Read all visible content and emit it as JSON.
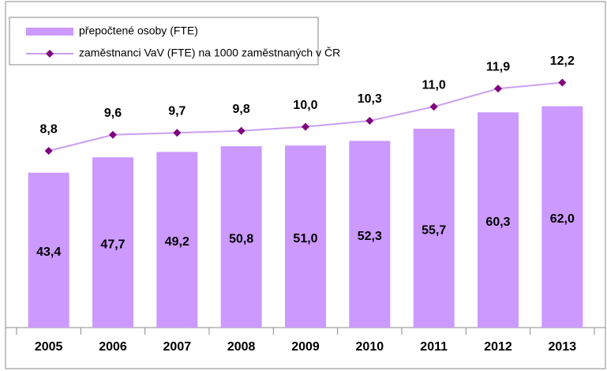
{
  "chart_data": {
    "type": "bar",
    "categories": [
      "2005",
      "2006",
      "2007",
      "2008",
      "2009",
      "2010",
      "2011",
      "2012",
      "2013"
    ],
    "series": [
      {
        "name": "přepočtené osoby (FTE)",
        "color": "#cc99ff",
        "type": "bar",
        "values": [
          43.4,
          47.7,
          49.2,
          50.8,
          51.0,
          52.3,
          55.7,
          60.3,
          62.0
        ],
        "value_labels": [
          "43,4",
          "47,7",
          "49,2",
          "50,8",
          "51,0",
          "52,3",
          "55,7",
          "60,3",
          "62,0"
        ]
      },
      {
        "name": "zaměstnanci VaV (FTE) na 1000 zaměstnaných v ČR",
        "color": "#c9a0f0",
        "marker_color": "#800080",
        "type": "line",
        "axis": "y2",
        "values": [
          8.8,
          9.6,
          9.7,
          9.8,
          10.0,
          10.3,
          11.0,
          11.9,
          12.2
        ],
        "value_labels": [
          "8,8",
          "9,6",
          "9,7",
          "9,8",
          "10,0",
          "10,3",
          "11,0",
          "11,9",
          "12,2"
        ]
      }
    ],
    "ylim": [
      0,
      90
    ],
    "y2lim": [
      0,
      16
    ],
    "legend": "top-left"
  }
}
